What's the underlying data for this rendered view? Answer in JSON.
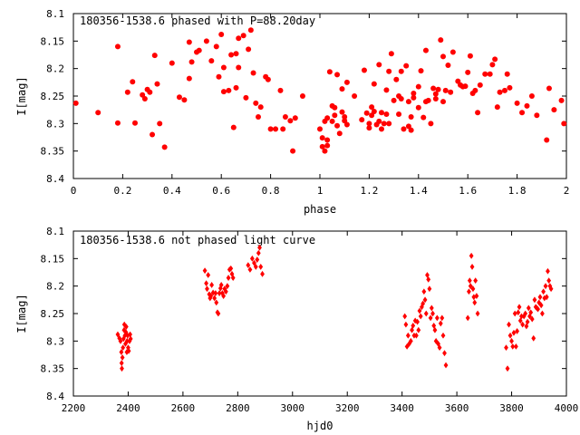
{
  "chart_data": [
    {
      "type": "scatter",
      "title": "180356-1538.6 phased with P=88.20day",
      "xlabel": "phase",
      "ylabel": "I[mag]",
      "xlim": [
        0,
        2
      ],
      "ylim": [
        8.1,
        8.4
      ],
      "y_inverted": true,
      "grid": false,
      "marker_color": "#ff0000",
      "xticks": [
        "0",
        "0.2",
        "0.4",
        "0.6",
        "0.8",
        "1",
        "1.2",
        "1.4",
        "1.6",
        "1.8",
        "2"
      ],
      "yticks": [
        "8.1",
        "8.15",
        "8.2",
        "8.25",
        "8.3",
        "8.35",
        "8.4"
      ],
      "points": [
        [
          0.01,
          8.263
        ],
        [
          0.1,
          8.28
        ],
        [
          0.18,
          8.16
        ],
        [
          0.18,
          8.299
        ],
        [
          0.22,
          8.243
        ],
        [
          0.24,
          8.224
        ],
        [
          0.25,
          8.299
        ],
        [
          0.28,
          8.248
        ],
        [
          0.29,
          8.255
        ],
        [
          0.3,
          8.238
        ],
        [
          0.31,
          8.243
        ],
        [
          0.32,
          8.32
        ],
        [
          0.33,
          8.176
        ],
        [
          0.34,
          8.228
        ],
        [
          0.35,
          8.3
        ],
        [
          0.37,
          8.343
        ],
        [
          0.4,
          8.19
        ],
        [
          0.43,
          8.252
        ],
        [
          0.45,
          8.257
        ],
        [
          0.47,
          8.152
        ],
        [
          0.47,
          8.218
        ],
        [
          0.48,
          8.188
        ],
        [
          0.5,
          8.17
        ],
        [
          0.51,
          8.167
        ],
        [
          0.54,
          8.15
        ],
        [
          0.56,
          8.186
        ],
        [
          0.58,
          8.16
        ],
        [
          0.59,
          8.215
        ],
        [
          0.6,
          8.138
        ],
        [
          0.61,
          8.242
        ],
        [
          0.61,
          8.198
        ],
        [
          0.63,
          8.24
        ],
        [
          0.64,
          8.175
        ],
        [
          0.65,
          8.307
        ],
        [
          0.66,
          8.173
        ],
        [
          0.66,
          8.235
        ],
        [
          0.67,
          8.145
        ],
        [
          0.67,
          8.198
        ],
        [
          0.69,
          8.14
        ],
        [
          0.7,
          8.253
        ],
        [
          0.71,
          8.165
        ],
        [
          0.72,
          8.13
        ],
        [
          0.73,
          8.208
        ],
        [
          0.74,
          8.263
        ],
        [
          0.75,
          8.288
        ],
        [
          0.76,
          8.27
        ],
        [
          0.78,
          8.215
        ],
        [
          0.79,
          8.22
        ],
        [
          0.8,
          8.31
        ],
        [
          0.82,
          8.31
        ],
        [
          0.84,
          8.24
        ],
        [
          0.85,
          8.31
        ],
        [
          0.86,
          8.288
        ],
        [
          0.88,
          8.295
        ],
        [
          0.89,
          8.35
        ],
        [
          0.9,
          8.29
        ],
        [
          0.93,
          8.25
        ],
        [
          1.0,
          8.31
        ],
        [
          1.01,
          8.326
        ],
        [
          1.01,
          8.342
        ],
        [
          1.02,
          8.35
        ],
        [
          1.02,
          8.296
        ],
        [
          1.03,
          8.29
        ],
        [
          1.03,
          8.33
        ],
        [
          1.03,
          8.34
        ],
        [
          1.04,
          8.206
        ],
        [
          1.05,
          8.268
        ],
        [
          1.05,
          8.296
        ],
        [
          1.06,
          8.271
        ],
        [
          1.06,
          8.285
        ],
        [
          1.07,
          8.304
        ],
        [
          1.07,
          8.211
        ],
        [
          1.08,
          8.318
        ],
        [
          1.09,
          8.279
        ],
        [
          1.09,
          8.237
        ],
        [
          1.1,
          8.288
        ],
        [
          1.1,
          8.295
        ],
        [
          1.11,
          8.302
        ],
        [
          1.11,
          8.225
        ],
        [
          1.14,
          8.25
        ],
        [
          1.17,
          8.293
        ],
        [
          1.18,
          8.203
        ],
        [
          1.19,
          8.281
        ],
        [
          1.2,
          8.3
        ],
        [
          1.2,
          8.308
        ],
        [
          1.21,
          8.285
        ],
        [
          1.21,
          8.27
        ],
        [
          1.22,
          8.278
        ],
        [
          1.22,
          8.228
        ],
        [
          1.23,
          8.302
        ],
        [
          1.24,
          8.193
        ],
        [
          1.24,
          8.296
        ],
        [
          1.25,
          8.31
        ],
        [
          1.25,
          8.28
        ],
        [
          1.26,
          8.3
        ],
        [
          1.27,
          8.283
        ],
        [
          1.27,
          8.239
        ],
        [
          1.28,
          8.205
        ],
        [
          1.28,
          8.3
        ],
        [
          1.29,
          8.173
        ],
        [
          1.3,
          8.258
        ],
        [
          1.31,
          8.22
        ],
        [
          1.32,
          8.283
        ],
        [
          1.32,
          8.25
        ],
        [
          1.33,
          8.255
        ],
        [
          1.33,
          8.205
        ],
        [
          1.34,
          8.31
        ],
        [
          1.35,
          8.195
        ],
        [
          1.36,
          8.26
        ],
        [
          1.36,
          8.305
        ],
        [
          1.37,
          8.312
        ],
        [
          1.37,
          8.288
        ],
        [
          1.38,
          8.253
        ],
        [
          1.38,
          8.245
        ],
        [
          1.4,
          8.271
        ],
        [
          1.4,
          8.233
        ],
        [
          1.41,
          8.204
        ],
        [
          1.42,
          8.289
        ],
        [
          1.43,
          8.26
        ],
        [
          1.43,
          8.167
        ],
        [
          1.44,
          8.258
        ],
        [
          1.45,
          8.3
        ],
        [
          1.46,
          8.236
        ],
        [
          1.47,
          8.255
        ],
        [
          1.47,
          8.246
        ],
        [
          1.48,
          8.238
        ],
        [
          1.49,
          8.148
        ],
        [
          1.5,
          8.26
        ],
        [
          1.5,
          8.178
        ],
        [
          1.51,
          8.24
        ],
        [
          1.52,
          8.194
        ],
        [
          1.53,
          8.243
        ],
        [
          1.54,
          8.17
        ],
        [
          1.56,
          8.223
        ],
        [
          1.57,
          8.23
        ],
        [
          1.58,
          8.233
        ],
        [
          1.59,
          8.232
        ],
        [
          1.6,
          8.207
        ],
        [
          1.61,
          8.177
        ],
        [
          1.62,
          8.245
        ],
        [
          1.63,
          8.24
        ],
        [
          1.64,
          8.28
        ],
        [
          1.65,
          8.23
        ],
        [
          1.67,
          8.21
        ],
        [
          1.69,
          8.21
        ],
        [
          1.7,
          8.193
        ],
        [
          1.71,
          8.183
        ],
        [
          1.72,
          8.27
        ],
        [
          1.73,
          8.243
        ],
        [
          1.75,
          8.24
        ],
        [
          1.76,
          8.21
        ],
        [
          1.77,
          8.235
        ],
        [
          1.8,
          8.263
        ],
        [
          1.82,
          8.28
        ],
        [
          1.84,
          8.268
        ],
        [
          1.86,
          8.25
        ],
        [
          1.88,
          8.285
        ],
        [
          1.92,
          8.33
        ],
        [
          1.93,
          8.236
        ],
        [
          1.95,
          8.275
        ],
        [
          1.98,
          8.258
        ],
        [
          1.99,
          8.3
        ]
      ]
    },
    {
      "type": "scatter",
      "title": "180356-1538.6 not phased light curve",
      "xlabel": "hjd0",
      "ylabel": "I[mag]",
      "xlim": [
        2200,
        4000
      ],
      "ylim": [
        8.1,
        8.4
      ],
      "y_inverted": true,
      "grid": false,
      "marker_color": "#ff0000",
      "xticks": [
        "2200",
        "2400",
        "2600",
        "2800",
        "3000",
        "3200",
        "3400",
        "3600",
        "3800",
        "4000"
      ],
      "yticks": [
        "8.1",
        "8.15",
        "8.2",
        "8.25",
        "8.3",
        "8.35",
        "8.4"
      ],
      "points": [
        [
          2362,
          8.288
        ],
        [
          2368,
          8.295
        ],
        [
          2372,
          8.3
        ],
        [
          2375,
          8.32
        ],
        [
          2376,
          8.34
        ],
        [
          2377,
          8.35
        ],
        [
          2379,
          8.33
        ],
        [
          2381,
          8.312
        ],
        [
          2383,
          8.296
        ],
        [
          2385,
          8.28
        ],
        [
          2386,
          8.27
        ],
        [
          2388,
          8.29
        ],
        [
          2390,
          8.305
        ],
        [
          2392,
          8.284
        ],
        [
          2393,
          8.274
        ],
        [
          2395,
          8.32
        ],
        [
          2396,
          8.3
        ],
        [
          2398,
          8.29
        ],
        [
          2400,
          8.312
        ],
        [
          2402,
          8.318
        ],
        [
          2405,
          8.3
        ],
        [
          2407,
          8.288
        ],
        [
          2409,
          8.296
        ],
        [
          2680,
          8.172
        ],
        [
          2685,
          8.195
        ],
        [
          2688,
          8.205
        ],
        [
          2692,
          8.18
        ],
        [
          2696,
          8.215
        ],
        [
          2699,
          8.222
        ],
        [
          2702,
          8.218
        ],
        [
          2705,
          8.198
        ],
        [
          2710,
          8.212
        ],
        [
          2715,
          8.222
        ],
        [
          2719,
          8.213
        ],
        [
          2722,
          8.23
        ],
        [
          2726,
          8.248
        ],
        [
          2729,
          8.25
        ],
        [
          2733,
          8.213
        ],
        [
          2737,
          8.204
        ],
        [
          2740,
          8.198
        ],
        [
          2744,
          8.213
        ],
        [
          2748,
          8.218
        ],
        [
          2752,
          8.205
        ],
        [
          2757,
          8.21
        ],
        [
          2762,
          8.2
        ],
        [
          2766,
          8.185
        ],
        [
          2770,
          8.17
        ],
        [
          2775,
          8.168
        ],
        [
          2779,
          8.178
        ],
        [
          2783,
          8.185
        ],
        [
          2838,
          8.162
        ],
        [
          2845,
          8.17
        ],
        [
          2853,
          8.15
        ],
        [
          2860,
          8.158
        ],
        [
          2866,
          8.165
        ],
        [
          2871,
          8.152
        ],
        [
          2876,
          8.14
        ],
        [
          2880,
          8.13
        ],
        [
          2884,
          8.165
        ],
        [
          2890,
          8.178
        ],
        [
          3410,
          8.255
        ],
        [
          3414,
          8.27
        ],
        [
          3418,
          8.31
        ],
        [
          3422,
          8.29
        ],
        [
          3426,
          8.305
        ],
        [
          3432,
          8.3
        ],
        [
          3436,
          8.28
        ],
        [
          3440,
          8.272
        ],
        [
          3444,
          8.29
        ],
        [
          3448,
          8.263
        ],
        [
          3452,
          8.29
        ],
        [
          3456,
          8.265
        ],
        [
          3460,
          8.28
        ],
        [
          3464,
          8.245
        ],
        [
          3468,
          8.255
        ],
        [
          3472,
          8.238
        ],
        [
          3476,
          8.232
        ],
        [
          3480,
          8.21
        ],
        [
          3484,
          8.225
        ],
        [
          3488,
          8.25
        ],
        [
          3492,
          8.18
        ],
        [
          3496,
          8.188
        ],
        [
          3500,
          8.205
        ],
        [
          3504,
          8.258
        ],
        [
          3508,
          8.24
        ],
        [
          3512,
          8.25
        ],
        [
          3516,
          8.272
        ],
        [
          3520,
          8.28
        ],
        [
          3524,
          8.3
        ],
        [
          3528,
          8.258
        ],
        [
          3532,
          8.305
        ],
        [
          3537,
          8.312
        ],
        [
          3541,
          8.268
        ],
        [
          3546,
          8.258
        ],
        [
          3550,
          8.29
        ],
        [
          3555,
          8.322
        ],
        [
          3560,
          8.344
        ],
        [
          3640,
          8.258
        ],
        [
          3644,
          8.21
        ],
        [
          3647,
          8.19
        ],
        [
          3650,
          8.2
        ],
        [
          3653,
          8.145
        ],
        [
          3656,
          8.165
        ],
        [
          3659,
          8.205
        ],
        [
          3662,
          8.22
        ],
        [
          3665,
          8.23
        ],
        [
          3668,
          8.19
        ],
        [
          3672,
          8.218
        ],
        [
          3676,
          8.25
        ],
        [
          3780,
          8.312
        ],
        [
          3785,
          8.35
        ],
        [
          3790,
          8.27
        ],
        [
          3795,
          8.29
        ],
        [
          3800,
          8.3
        ],
        [
          3804,
          8.31
        ],
        [
          3808,
          8.285
        ],
        [
          3812,
          8.25
        ],
        [
          3816,
          8.31
        ],
        [
          3820,
          8.282
        ],
        [
          3824,
          8.248
        ],
        [
          3828,
          8.238
        ],
        [
          3832,
          8.263
        ],
        [
          3836,
          8.255
        ],
        [
          3840,
          8.27
        ],
        [
          3845,
          8.255
        ],
        [
          3850,
          8.25
        ],
        [
          3854,
          8.273
        ],
        [
          3858,
          8.265
        ],
        [
          3862,
          8.24
        ],
        [
          3866,
          8.255
        ],
        [
          3870,
          8.248
        ],
        [
          3875,
          8.26
        ],
        [
          3880,
          8.295
        ],
        [
          3884,
          8.225
        ],
        [
          3888,
          8.238
        ],
        [
          3892,
          8.24
        ],
        [
          3896,
          8.242
        ],
        [
          3900,
          8.23
        ],
        [
          3904,
          8.22
        ],
        [
          3908,
          8.235
        ],
        [
          3912,
          8.25
        ],
        [
          3916,
          8.21
        ],
        [
          3920,
          8.222
        ],
        [
          3924,
          8.2
        ],
        [
          3928,
          8.22
        ],
        [
          3932,
          8.173
        ],
        [
          3936,
          8.19
        ],
        [
          3940,
          8.2
        ],
        [
          3944,
          8.205
        ]
      ]
    }
  ]
}
